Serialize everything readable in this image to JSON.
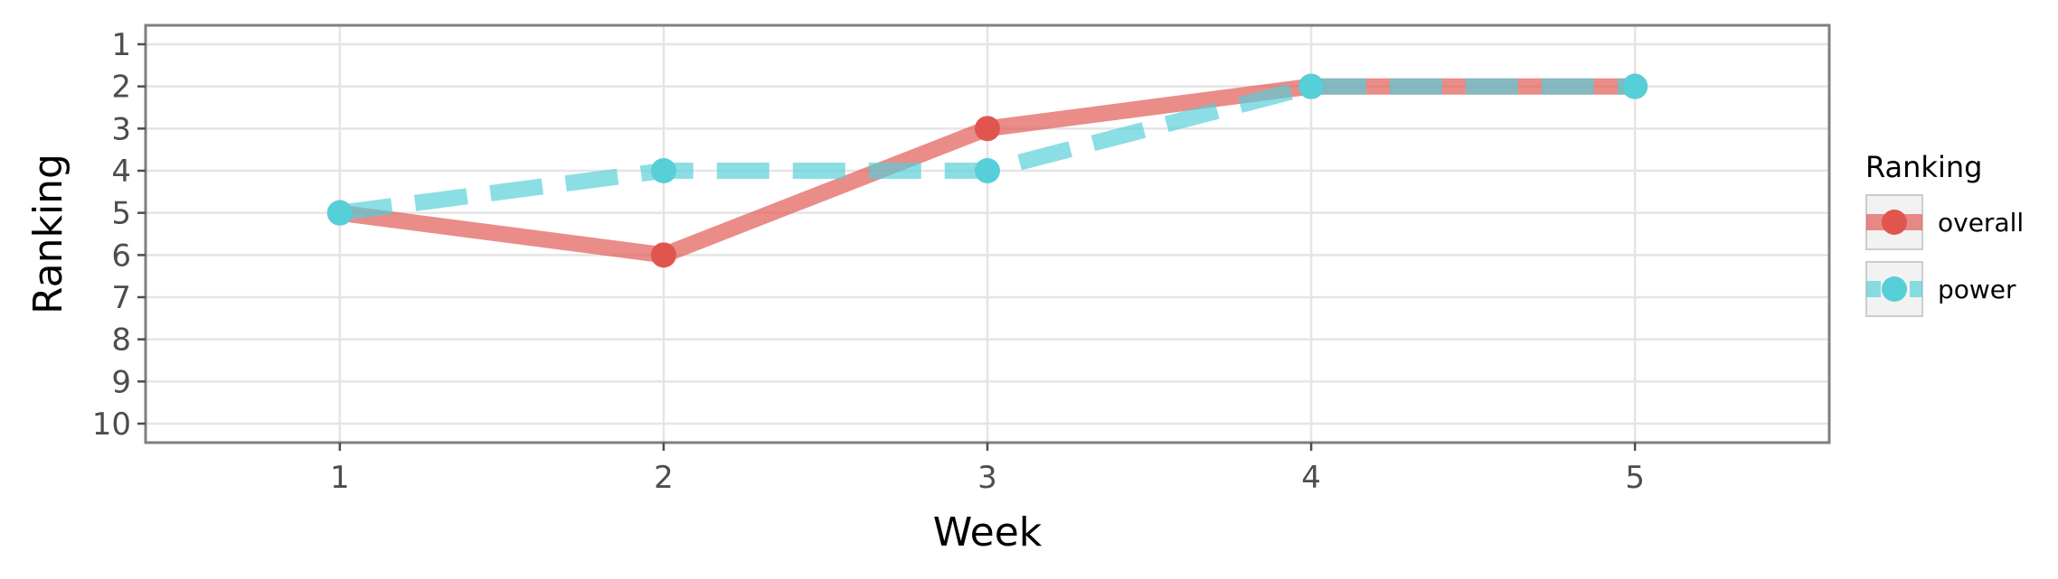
{
  "chart_data": {
    "type": "line",
    "title": "",
    "xlabel": "Week",
    "ylabel": "Ranking",
    "x": [
      1,
      2,
      3,
      4,
      5
    ],
    "x_ticks": [
      "1",
      "2",
      "3",
      "4",
      "5"
    ],
    "xlim": [
      0.4,
      5.6
    ],
    "y_ticks": [
      "1",
      "2",
      "3",
      "4",
      "5",
      "6",
      "7",
      "8",
      "9",
      "10"
    ],
    "ylim": [
      10.45,
      0.55
    ],
    "y_reversed": true,
    "grid": true,
    "legend": {
      "title": "Ranking",
      "placement": "right"
    },
    "series": [
      {
        "name": "overall",
        "values": [
          5,
          6,
          3,
          2,
          2
        ],
        "color": "#e0564f",
        "line_style": "solid"
      },
      {
        "name": "power",
        "values": [
          5,
          4,
          4,
          2,
          2
        ],
        "color": "#56cfd9",
        "line_style": "dashed"
      }
    ]
  }
}
